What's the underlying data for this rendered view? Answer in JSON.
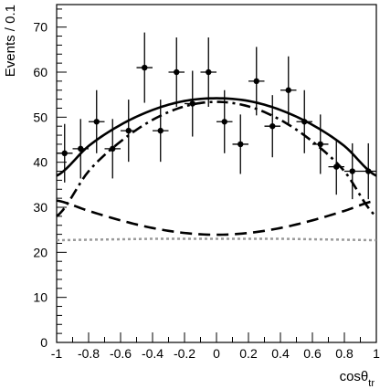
{
  "chart_data": {
    "type": "scatter",
    "title": "",
    "xlabel": "cosθ",
    "xlabel_sub": "tr",
    "ylabel": "Events / 0.1",
    "xlim": [
      -1,
      1
    ],
    "ylim": [
      0,
      75
    ],
    "x_ticks_major": [
      -1,
      -0.8,
      -0.6,
      -0.4,
      -0.2,
      0,
      0.2,
      0.4,
      0.6,
      0.8,
      1
    ],
    "x_tick_labels": [
      "-1",
      "-0.8",
      "-0.6",
      "-0.4",
      "-0.2",
      "0",
      "0.2",
      "0.4",
      "0.6",
      "0.8",
      "1"
    ],
    "y_ticks_major": [
      0,
      10,
      20,
      30,
      40,
      50,
      60,
      70
    ],
    "y_tick_labels": [
      "0",
      "10",
      "20",
      "30",
      "40",
      "50",
      "60",
      "70"
    ],
    "grid": false,
    "legend": "none",
    "points": {
      "x": [
        -0.95,
        -0.85,
        -0.75,
        -0.65,
        -0.55,
        -0.45,
        -0.35,
        -0.25,
        -0.15,
        -0.05,
        0.05,
        0.15,
        0.25,
        0.35,
        0.45,
        0.55,
        0.65,
        0.75,
        0.85,
        0.95
      ],
      "y": [
        42,
        43,
        49,
        43,
        47,
        61,
        47,
        60,
        53,
        60,
        49,
        44,
        58,
        48,
        56,
        49,
        44,
        39,
        38,
        38
      ],
      "err": [
        6.5,
        6.6,
        7.0,
        6.6,
        6.9,
        7.8,
        6.9,
        7.7,
        7.3,
        7.7,
        7.0,
        6.6,
        7.6,
        6.9,
        7.5,
        7.0,
        6.6,
        6.2,
        6.2,
        6.2
      ],
      "xerr": 0.05
    },
    "curves": [
      {
        "style": "solid",
        "color": "#000000",
        "x": [
          -1,
          -0.8,
          -0.6,
          -0.4,
          -0.2,
          0,
          0.2,
          0.4,
          0.6,
          0.8,
          1
        ],
        "y": [
          37,
          43.6,
          48.3,
          51.6,
          53.6,
          54.2,
          53.6,
          51.6,
          48.3,
          43.6,
          37
        ]
      },
      {
        "style": "dashdot",
        "color": "#000000",
        "x": [
          -1,
          -0.8,
          -0.6,
          -0.4,
          -0.2,
          0,
          0.2,
          0.4,
          0.6,
          0.8,
          1
        ],
        "y": [
          28,
          38.0,
          44.6,
          49.4,
          52.4,
          53.4,
          52.4,
          49.4,
          44.6,
          38.0,
          28
        ]
      },
      {
        "style": "dashed",
        "color": "#000000",
        "x": [
          -1,
          -0.8,
          -0.6,
          -0.4,
          -0.2,
          0,
          0.2,
          0.4,
          0.6,
          0.8,
          1
        ],
        "y": [
          31.5,
          29.2,
          27.1,
          25.4,
          24.3,
          23.9,
          24.3,
          25.4,
          27.1,
          29.2,
          31.5
        ]
      },
      {
        "style": "dotted",
        "color": "#9a9a9a",
        "x": [
          -1,
          -0.8,
          -0.6,
          -0.4,
          -0.2,
          0,
          0.2,
          0.4,
          0.6,
          0.8,
          1
        ],
        "y": [
          22.7,
          22.8,
          22.9,
          23.0,
          23.0,
          23.0,
          23.0,
          23.0,
          22.9,
          22.8,
          22.7
        ]
      }
    ]
  }
}
